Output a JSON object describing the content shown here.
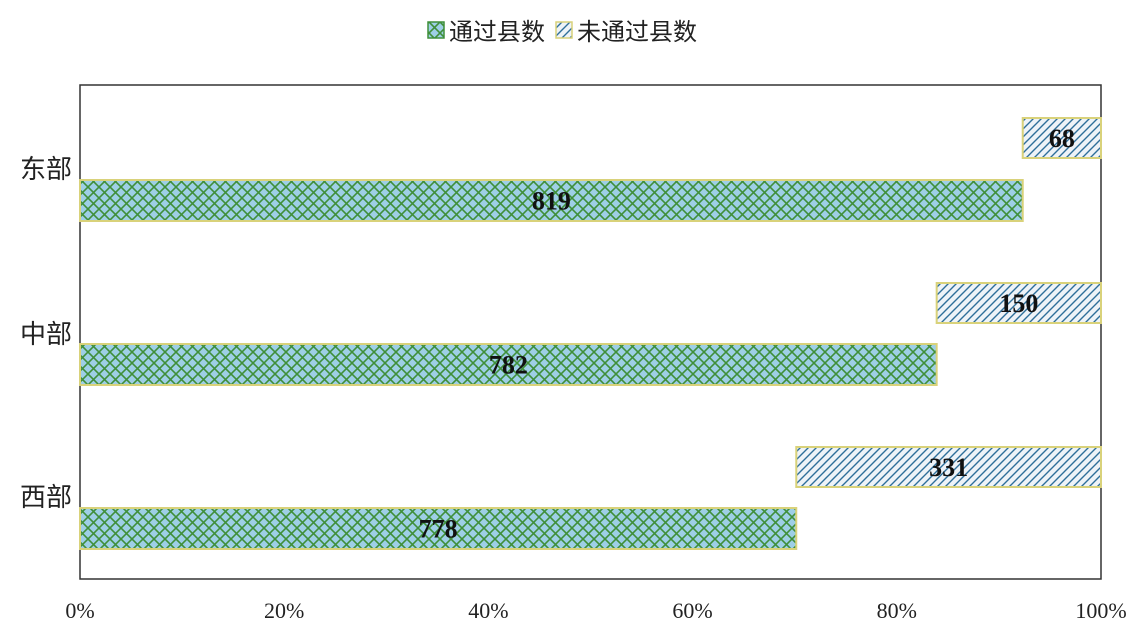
{
  "chart_data": {
    "type": "bar",
    "orientation": "horizontal",
    "stacked": "percent",
    "categories": [
      "东部",
      "中部",
      "西部"
    ],
    "series": [
      {
        "name": "通过县数",
        "values": [
          819,
          782,
          778
        ],
        "color": "#3f8f3a",
        "fill_color": "#9ecfe6",
        "border_color": "#d9d27a",
        "pattern": "crosshatch"
      },
      {
        "name": "未通过县数",
        "values": [
          68,
          150,
          331
        ],
        "color": "#d9d27a",
        "fill_color": "#e8eef5",
        "border_color": "#d9d27a",
        "pattern": "diagonal"
      }
    ],
    "x_ticks": [
      "0%",
      "20%",
      "40%",
      "60%",
      "80%",
      "100%"
    ],
    "xlim": [
      0,
      100
    ],
    "grid": false,
    "legend_position": "top",
    "title": "",
    "xlabel": "",
    "ylabel": ""
  }
}
